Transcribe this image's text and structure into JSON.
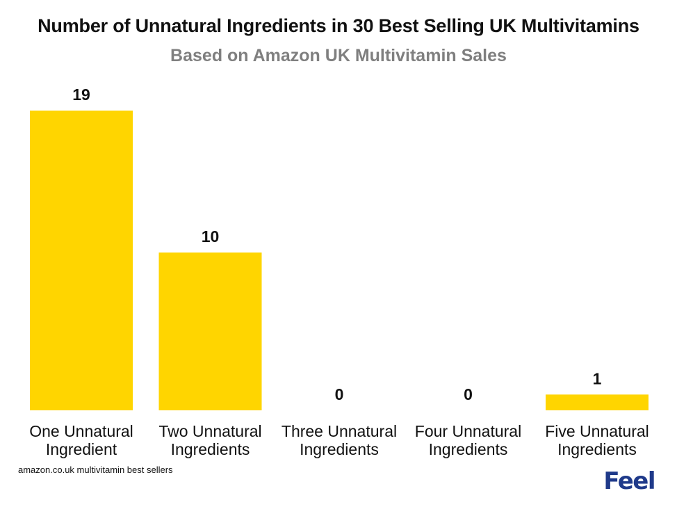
{
  "chart_data": {
    "type": "bar",
    "title": "Number of Unnatural Ingredients in 30 Best Selling UK Multivitamins",
    "subtitle": "Based on Amazon UK Multivitamin Sales",
    "categories": [
      [
        "One Unnatural",
        "Ingredient"
      ],
      [
        "Two Unnatural",
        "Ingredients"
      ],
      [
        "Three Unnatural",
        "Ingredients"
      ],
      [
        "Four Unnatural",
        "Ingredients"
      ],
      [
        "Five Unnatural",
        "Ingredients"
      ]
    ],
    "values": [
      19,
      10,
      0,
      0,
      1
    ],
    "ylim": [
      0,
      19
    ],
    "grid": false,
    "legend": "none",
    "bar_color": "#FFD500"
  },
  "source": "amazon.co.uk multivitamin best sellers",
  "logo": "Feel"
}
